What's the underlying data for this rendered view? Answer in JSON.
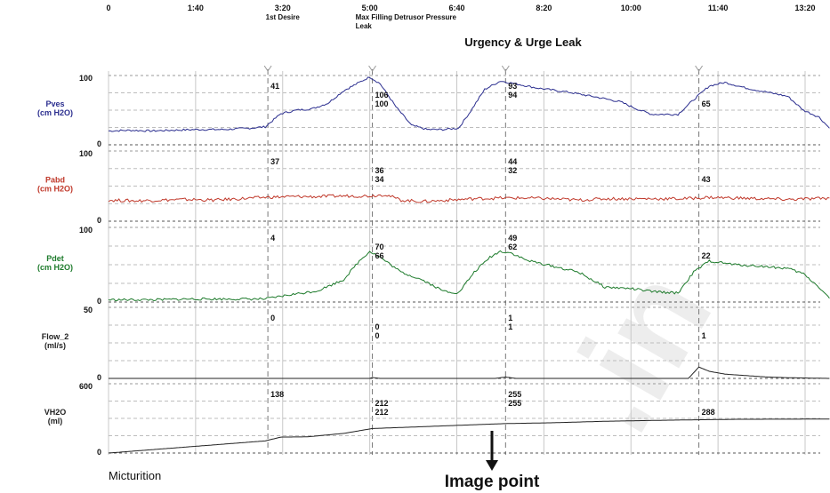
{
  "chart_data": {
    "type": "line",
    "x_unit": "min:sec",
    "x_ticks": [
      "0",
      "1:40",
      "3:20",
      "5:00",
      "6:40",
      "8:20",
      "10:00",
      "11:40",
      "13:20"
    ],
    "events": [
      {
        "t": "3:20",
        "label": "1st Desire"
      },
      {
        "t": "5:00",
        "label": "Max Filling Detrusor Pressure"
      },
      {
        "t": "5:00",
        "label": "Leak"
      }
    ],
    "banner": "Urgency & Urge Leak",
    "channels": [
      {
        "name": "Pves",
        "unit": "(cm H2O)",
        "color": "#2b2e8f",
        "ylim": [
          0,
          100
        ],
        "scale_labels": [
          "100",
          "0"
        ],
        "points": [
          [
            0,
            20
          ],
          [
            0.4,
            21
          ],
          [
            0.8,
            20
          ],
          [
            1.2,
            21
          ],
          [
            1.67,
            22
          ],
          [
            2.2,
            22
          ],
          [
            2.7,
            24
          ],
          [
            3.0,
            26
          ],
          [
            3.3,
            45
          ],
          [
            3.6,
            50
          ],
          [
            3.9,
            52
          ],
          [
            4.2,
            60
          ],
          [
            4.5,
            78
          ],
          [
            4.8,
            90
          ],
          [
            5.0,
            98
          ],
          [
            5.2,
            88
          ],
          [
            5.5,
            55
          ],
          [
            5.8,
            28
          ],
          [
            6.1,
            22
          ],
          [
            6.4,
            22
          ],
          [
            6.7,
            24
          ],
          [
            6.9,
            45
          ],
          [
            7.2,
            80
          ],
          [
            7.5,
            92
          ],
          [
            7.8,
            88
          ],
          [
            8.2,
            82
          ],
          [
            8.8,
            76
          ],
          [
            9.4,
            68
          ],
          [
            9.8,
            62
          ],
          [
            10.1,
            52
          ],
          [
            10.4,
            44
          ],
          [
            10.9,
            44
          ],
          [
            11.2,
            65
          ],
          [
            11.5,
            85
          ],
          [
            11.8,
            90
          ],
          [
            12.2,
            82
          ],
          [
            12.6,
            76
          ],
          [
            13.0,
            70
          ],
          [
            13.3,
            50
          ],
          [
            13.6,
            40
          ],
          [
            13.8,
            24
          ]
        ],
        "annotations": [
          {
            "t": 3.05,
            "text": "41",
            "row": 0
          },
          {
            "t": 5.05,
            "text": "106",
            "row": 1
          },
          {
            "t": 5.05,
            "text": "100",
            "row": 2
          },
          {
            "t": 7.6,
            "text": "93",
            "row": 0
          },
          {
            "t": 7.6,
            "text": "94",
            "row": 1
          },
          {
            "t": 11.3,
            "text": "65",
            "row": 2
          }
        ]
      },
      {
        "name": "Pabd",
        "unit": "(cm H2O)",
        "color": "#c0392b",
        "ylim": [
          0,
          100
        ],
        "scale_labels": [
          "100",
          "0"
        ],
        "points": [
          [
            0,
            30
          ],
          [
            0.5,
            29
          ],
          [
            1.0,
            30
          ],
          [
            1.5,
            31
          ],
          [
            2.0,
            30
          ],
          [
            2.5,
            32
          ],
          [
            3.0,
            34
          ],
          [
            3.5,
            35
          ],
          [
            4.0,
            35
          ],
          [
            4.5,
            36
          ],
          [
            5.0,
            36
          ],
          [
            5.3,
            38
          ],
          [
            5.6,
            30
          ],
          [
            6.0,
            28
          ],
          [
            6.5,
            30
          ],
          [
            7.0,
            32
          ],
          [
            7.5,
            33
          ],
          [
            8.0,
            33
          ],
          [
            8.5,
            32
          ],
          [
            9.0,
            30
          ],
          [
            9.5,
            32
          ],
          [
            10.0,
            32
          ],
          [
            10.5,
            32
          ],
          [
            11.0,
            32
          ],
          [
            11.5,
            34
          ],
          [
            12.0,
            33
          ],
          [
            12.5,
            32
          ],
          [
            13.0,
            31
          ],
          [
            13.5,
            32
          ],
          [
            13.8,
            33
          ]
        ],
        "annotations": [
          {
            "t": 3.05,
            "text": "37",
            "row": 0
          },
          {
            "t": 5.05,
            "text": "36",
            "row": 1
          },
          {
            "t": 5.05,
            "text": "34",
            "row": 2
          },
          {
            "t": 7.6,
            "text": "44",
            "row": 0
          },
          {
            "t": 7.6,
            "text": "32",
            "row": 1
          },
          {
            "t": 11.3,
            "text": "43",
            "row": 2
          }
        ]
      },
      {
        "name": "Pdet",
        "unit": "(cm H2O)",
        "color": "#1e7b2c",
        "ylim": [
          0,
          100
        ],
        "scale_labels": [
          "100",
          "0"
        ],
        "points": [
          [
            0,
            3
          ],
          [
            0.5,
            3
          ],
          [
            1.0,
            3
          ],
          [
            1.5,
            4
          ],
          [
            2.0,
            4
          ],
          [
            2.5,
            4
          ],
          [
            3.0,
            4
          ],
          [
            3.5,
            10
          ],
          [
            4.0,
            15
          ],
          [
            4.5,
            30
          ],
          [
            4.8,
            55
          ],
          [
            5.0,
            68
          ],
          [
            5.2,
            60
          ],
          [
            5.6,
            40
          ],
          [
            6.0,
            30
          ],
          [
            6.4,
            15
          ],
          [
            6.7,
            12
          ],
          [
            7.0,
            40
          ],
          [
            7.3,
            60
          ],
          [
            7.5,
            68
          ],
          [
            7.7,
            66
          ],
          [
            8.0,
            56
          ],
          [
            8.5,
            48
          ],
          [
            9.0,
            40
          ],
          [
            9.5,
            20
          ],
          [
            10.0,
            18
          ],
          [
            10.4,
            14
          ],
          [
            10.9,
            12
          ],
          [
            11.2,
            40
          ],
          [
            11.5,
            55
          ],
          [
            12.0,
            50
          ],
          [
            12.5,
            48
          ],
          [
            13.0,
            45
          ],
          [
            13.3,
            38
          ],
          [
            13.6,
            20
          ],
          [
            13.8,
            5
          ]
        ],
        "annotations": [
          {
            "t": 3.05,
            "text": "4",
            "row": 0
          },
          {
            "t": 5.05,
            "text": "70",
            "row": 1
          },
          {
            "t": 5.05,
            "text": "66",
            "row": 2
          },
          {
            "t": 7.6,
            "text": "49",
            "row": 0
          },
          {
            "t": 7.6,
            "text": "62",
            "row": 1
          },
          {
            "t": 11.3,
            "text": "22",
            "row": 2
          }
        ]
      },
      {
        "name": "Flow_2",
        "unit": "(ml/s)",
        "color": "#222222",
        "ylim": [
          0,
          50
        ],
        "scale_labels": [
          "50",
          "0"
        ],
        "points": [
          [
            0,
            0
          ],
          [
            2.0,
            0
          ],
          [
            4.0,
            0
          ],
          [
            5.0,
            0
          ],
          [
            5.05,
            0.6
          ],
          [
            5.2,
            0
          ],
          [
            7.4,
            0
          ],
          [
            7.6,
            1
          ],
          [
            7.8,
            0
          ],
          [
            11.1,
            0
          ],
          [
            11.3,
            8
          ],
          [
            11.5,
            5
          ],
          [
            11.8,
            3
          ],
          [
            12.2,
            2
          ],
          [
            12.6,
            1
          ],
          [
            13.0,
            0.5
          ],
          [
            13.8,
            0
          ]
        ],
        "annotations": [
          {
            "t": 3.05,
            "text": "0",
            "row": 0
          },
          {
            "t": 5.05,
            "text": "0",
            "row": 1
          },
          {
            "t": 5.05,
            "text": "0",
            "row": 2
          },
          {
            "t": 7.6,
            "text": "1",
            "row": 0
          },
          {
            "t": 7.6,
            "text": "1",
            "row": 1
          },
          {
            "t": 11.3,
            "text": "1",
            "row": 2
          }
        ]
      },
      {
        "name": "VH2O",
        "unit": "(ml)",
        "color": "#222222",
        "ylim": [
          0,
          600
        ],
        "scale_labels": [
          "600",
          "0"
        ],
        "points": [
          [
            0,
            0
          ],
          [
            1.0,
            35
          ],
          [
            2.0,
            70
          ],
          [
            3.0,
            105
          ],
          [
            3.3,
            138
          ],
          [
            3.8,
            140
          ],
          [
            4.5,
            170
          ],
          [
            5.05,
            212
          ],
          [
            6.0,
            228
          ],
          [
            7.0,
            245
          ],
          [
            7.6,
            255
          ],
          [
            8.5,
            262
          ],
          [
            9.5,
            275
          ],
          [
            10.5,
            283
          ],
          [
            11.3,
            288
          ],
          [
            12.0,
            292
          ],
          [
            12.8,
            293
          ],
          [
            13.8,
            294
          ]
        ],
        "annotations": [
          {
            "t": 3.05,
            "text": "138",
            "row": 0
          },
          {
            "t": 5.05,
            "text": "212",
            "row": 1
          },
          {
            "t": 5.05,
            "text": "212",
            "row": 2
          },
          {
            "t": 7.6,
            "text": "255",
            "row": 0
          },
          {
            "t": 7.6,
            "text": "255",
            "row": 1
          },
          {
            "t": 11.3,
            "text": "288",
            "row": 2
          }
        ]
      }
    ],
    "footer": {
      "left": "Micturition",
      "center": "Image point"
    }
  }
}
